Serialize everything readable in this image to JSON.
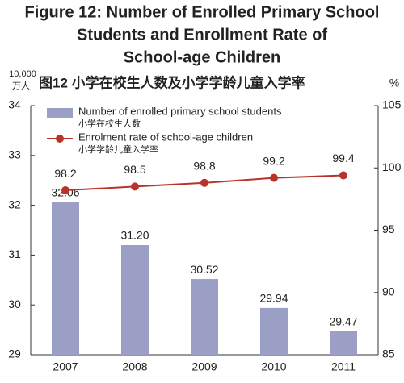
{
  "title": "Figure 12: Number of Enrolled Primary School Students and Enrollment Rate of School-age Children",
  "chart_data": {
    "type": "combo",
    "title_lines": [
      "Figure 12: Number of Enrolled Primary School",
      "Students and Enrollment Rate of",
      "School-age Children"
    ],
    "subtitle": "图12  小学在校生人数及小学学龄儿童入学率",
    "y_label": [
      "10,000",
      "万人"
    ],
    "y2_label": "%",
    "categories": [
      "2007",
      "2008",
      "2009",
      "2010",
      "2011"
    ],
    "series": [
      {
        "name": "Number of enrolled primary school students",
        "name_zh": "小学在校生人数",
        "type": "bar",
        "color": "#9b9fc6",
        "values": [
          32.06,
          31.2,
          30.52,
          29.94,
          29.47
        ],
        "value_labels": [
          "32.06",
          "31.20",
          "30.52",
          "29.94",
          "29.47"
        ]
      },
      {
        "name": "Enrolment rate of school-age children",
        "name_zh": "小学学龄儿童入学率",
        "type": "line",
        "color": "#b8332a",
        "axis": "y2",
        "values": [
          98.2,
          98.5,
          98.8,
          99.2,
          99.4
        ]
      }
    ],
    "ylim": [
      29,
      34
    ],
    "yticks": [
      29,
      30,
      31,
      32,
      33,
      34
    ],
    "y2lim": [
      85,
      105
    ],
    "y2ticks": [
      85,
      90,
      95,
      100,
      105
    ]
  }
}
